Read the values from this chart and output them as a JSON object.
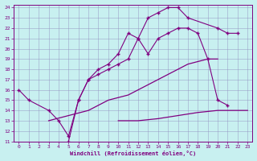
{
  "xlabel": "Windchill (Refroidissement éolien,°C)",
  "bg_color": "#c8f0f0",
  "line_color": "#800080",
  "grid_color": "#9090c0",
  "xmin": 0,
  "xmax": 23,
  "ymin": 11,
  "ymax": 24,
  "line1_x": [
    5,
    6,
    7,
    8,
    9,
    10,
    11,
    12,
    13,
    14,
    15,
    16,
    17,
    20,
    21,
    22
  ],
  "line1_y": [
    11,
    15,
    17,
    18,
    18.5,
    19.5,
    21.5,
    21,
    23,
    23.5,
    24,
    24,
    23,
    22,
    21.5,
    21.5
  ],
  "line2_x": [
    0,
    1,
    3,
    4,
    5,
    6,
    7,
    8,
    9,
    10,
    11,
    12,
    13,
    14,
    15,
    16,
    17,
    18,
    19,
    20,
    21
  ],
  "line2_y": [
    16,
    15,
    14,
    13,
    11.5,
    15,
    17,
    17.5,
    18,
    18.5,
    19,
    21,
    19.5,
    21,
    21.5,
    22,
    22,
    21.5,
    19,
    15,
    14.5
  ],
  "line3_x": [
    3,
    5,
    7,
    9,
    11,
    13,
    15,
    17,
    19,
    20
  ],
  "line3_y": [
    13,
    13.5,
    14,
    15,
    15.5,
    16.5,
    17.5,
    18.5,
    19,
    19
  ],
  "line4_x": [
    10,
    12,
    14,
    16,
    18,
    20,
    21,
    22,
    23
  ],
  "line4_y": [
    13,
    13,
    13.2,
    13.5,
    13.8,
    14,
    14,
    14,
    14
  ]
}
